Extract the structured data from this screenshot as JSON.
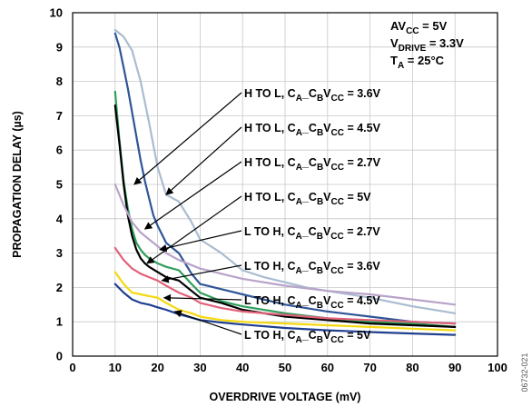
{
  "chart_data": {
    "type": "line",
    "title": "",
    "xlabel": "OVERDRIVE VOLTAGE (mV)",
    "ylabel": "PROPAGATION DELAY (µs)",
    "xlim": [
      0,
      100
    ],
    "ylim": [
      0,
      10
    ],
    "x_ticks": [
      "0",
      "10",
      "20",
      "30",
      "40",
      "50",
      "60",
      "70",
      "80",
      "90",
      "100"
    ],
    "y_ticks": [
      "0",
      "1",
      "2",
      "3",
      "4",
      "5",
      "6",
      "7",
      "8",
      "9",
      "10"
    ],
    "grid": true,
    "conditions": [
      {
        "base": "AV",
        "sub": "CC",
        "rest": " = 5V"
      },
      {
        "base": "V",
        "sub": "DRIVE",
        "rest": " = 3.3V"
      },
      {
        "base": "T",
        "sub": "A",
        "rest": " = 25°C"
      }
    ],
    "figure_id": "06732-021",
    "series": [
      {
        "name": "H TO L, C_A_C_BV_CC = 3.6V",
        "label": {
          "prefix": "H TO L, C",
          "sub1": "A",
          "mid1": "_C",
          "sub2": "B",
          "mid2": "V",
          "sub3": "CC",
          "suffix": " = 3.6V"
        },
        "color": "#a9bcd0",
        "x": [
          10,
          12,
          14,
          16,
          18,
          20,
          22,
          25,
          28,
          30,
          35,
          40,
          45,
          50,
          55,
          60,
          70,
          80,
          90
        ],
        "y": [
          9.5,
          9.3,
          8.9,
          8.0,
          6.8,
          5.5,
          4.7,
          4.5,
          3.9,
          3.4,
          3.0,
          2.5,
          2.3,
          2.15,
          2.0,
          1.9,
          1.7,
          1.45,
          1.25
        ]
      },
      {
        "name": "H TO L, C_A_C_BV_CC = 4.5V",
        "label": {
          "prefix": "H TO L, C",
          "sub1": "A",
          "mid1": "_C",
          "sub2": "B",
          "mid2": "V",
          "sub3": "CC",
          "suffix": " = 4.5V"
        },
        "color": "#2e5597",
        "x": [
          10,
          11,
          12,
          13,
          14,
          15,
          16,
          17,
          18,
          19,
          20,
          22,
          25,
          28,
          30,
          35,
          40,
          50,
          60,
          70,
          80,
          90
        ],
        "y": [
          9.4,
          9.0,
          8.4,
          7.8,
          7.1,
          6.4,
          5.7,
          5.1,
          4.6,
          4.1,
          3.8,
          3.3,
          3.0,
          2.4,
          2.1,
          1.95,
          1.8,
          1.5,
          1.3,
          1.15,
          1.0,
          0.95
        ]
      },
      {
        "name": "H TO L, C_A_C_BV_CC = 2.7V",
        "label": {
          "prefix": "H TO L, C",
          "sub1": "A",
          "mid1": "_C",
          "sub2": "B",
          "mid2": "V",
          "sub3": "CC",
          "suffix": " = 2.7V"
        },
        "color": "#2e9e5b",
        "x": [
          10,
          11,
          12,
          13,
          14,
          15,
          16,
          17,
          18,
          20,
          22,
          25,
          28,
          30,
          35,
          40,
          50,
          60,
          70,
          80,
          90
        ],
        "y": [
          7.7,
          6.3,
          5.1,
          4.3,
          3.7,
          3.3,
          3.1,
          2.95,
          2.85,
          2.7,
          2.6,
          2.5,
          2.1,
          1.85,
          1.6,
          1.45,
          1.25,
          1.1,
          1.0,
          0.95,
          0.85
        ]
      },
      {
        "name": "H TO L, C_A_C_BV_CC = 5V",
        "label": {
          "prefix": "H TO L, C",
          "sub1": "A",
          "mid1": "_C",
          "sub2": "B",
          "mid2": "V",
          "sub3": "CC",
          "suffix": " = 5V"
        },
        "color": "#000000",
        "x": [
          10,
          11,
          12,
          13,
          14,
          15,
          16,
          17,
          18,
          20,
          22,
          25,
          28,
          30,
          35,
          40,
          50,
          60,
          70,
          80,
          90
        ],
        "y": [
          7.3,
          6.2,
          5.0,
          4.1,
          3.5,
          3.1,
          2.85,
          2.7,
          2.6,
          2.45,
          2.3,
          2.2,
          1.9,
          1.7,
          1.55,
          1.35,
          1.15,
          1.05,
          0.95,
          0.9,
          0.85
        ]
      },
      {
        "name": "L TO H, C_A_C_BV_CC = 2.7V",
        "label": {
          "prefix": "L TO H, C",
          "sub1": "A",
          "mid1": "_C",
          "sub2": "B",
          "mid2": "V",
          "sub3": "CC",
          "suffix": " = 2.7V"
        },
        "color": "#b8a3c9",
        "x": [
          10,
          12,
          14,
          16,
          18,
          20,
          22,
          25,
          28,
          30,
          35,
          40,
          50,
          60,
          70,
          80,
          90
        ],
        "y": [
          5.0,
          4.4,
          3.9,
          3.6,
          3.4,
          3.2,
          3.0,
          2.8,
          2.65,
          2.55,
          2.4,
          2.25,
          2.05,
          1.9,
          1.8,
          1.65,
          1.5
        ]
      },
      {
        "name": "L TO H, C_A_C_BV_CC = 3.6V",
        "label": {
          "prefix": "L TO H, C",
          "sub1": "A",
          "mid1": "_C",
          "sub2": "B",
          "mid2": "V",
          "sub3": "CC",
          "suffix": " = 3.6V"
        },
        "color": "#e0627a",
        "x": [
          10,
          12,
          14,
          16,
          18,
          20,
          22,
          25,
          28,
          30,
          35,
          40,
          50,
          60,
          70,
          80,
          90
        ],
        "y": [
          3.15,
          2.8,
          2.55,
          2.4,
          2.3,
          2.2,
          2.05,
          1.85,
          1.7,
          1.55,
          1.4,
          1.3,
          1.2,
          1.1,
          1.05,
          1.0,
          0.95
        ]
      },
      {
        "name": "L TO H, C_A_C_BV_CC = 4.5V",
        "label": {
          "prefix": "L TO H, C",
          "sub1": "A",
          "mid1": "_C",
          "sub2": "B",
          "mid2": "V",
          "sub3": "CC",
          "suffix": " = 4.5V"
        },
        "color": "#f5d90f",
        "x": [
          10,
          12,
          14,
          16,
          18,
          20,
          22,
          25,
          28,
          30,
          35,
          40,
          50,
          60,
          70,
          80,
          90
        ],
        "y": [
          2.45,
          2.1,
          1.85,
          1.8,
          1.75,
          1.7,
          1.55,
          1.35,
          1.25,
          1.15,
          1.05,
          1.0,
          0.95,
          0.9,
          0.85,
          0.8,
          0.75
        ]
      },
      {
        "name": "L TO H, C_A_C_BV_CC = 5V",
        "label": {
          "prefix": "L TO H, C",
          "sub1": "A",
          "mid1": "_C",
          "sub2": "B",
          "mid2": "V",
          "sub3": "CC",
          "suffix": " = 5V"
        },
        "color": "#1f3f8f",
        "x": [
          10,
          12,
          14,
          16,
          18,
          20,
          22,
          25,
          28,
          30,
          35,
          40,
          50,
          60,
          70,
          80,
          90
        ],
        "y": [
          2.1,
          1.85,
          1.65,
          1.55,
          1.5,
          1.42,
          1.35,
          1.22,
          1.12,
          1.05,
          0.98,
          0.92,
          0.82,
          0.75,
          0.7,
          0.66,
          0.62
        ]
      }
    ]
  }
}
